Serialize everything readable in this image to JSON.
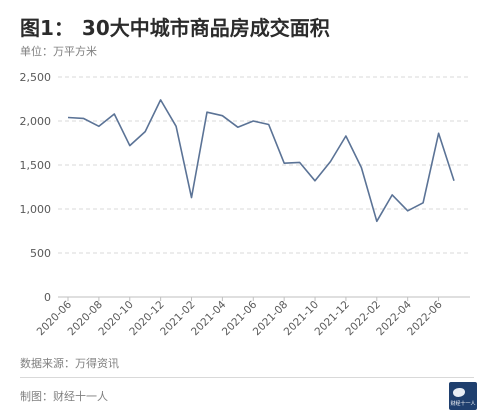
{
  "title": {
    "prefix": "图1：",
    "text": "30大中城市商品房成交面积"
  },
  "unit_label": "单位：万平方米",
  "source": "数据来源：万得资讯",
  "maker": "制图：财经十一人",
  "logo": {
    "icon": "caijing-logo",
    "text": "财经十一人",
    "bg_color": "#1f3f6e"
  },
  "colors": {
    "line": "#5b7396",
    "grid": "#d9d9d9",
    "axis": "#bfbfbf",
    "tick_text": "#595959"
  },
  "chart_data": {
    "type": "line",
    "title": "30大中城市商品房成交面积",
    "ylabel": "",
    "xlabel": "",
    "ylim": [
      0,
      2500
    ],
    "yticks": [
      0,
      500,
      1000,
      1500,
      2000,
      2500
    ],
    "yticklabels": [
      "0",
      "500",
      "1,000",
      "1,500",
      "2,000",
      "2,500"
    ],
    "grid": true,
    "legend": "none",
    "x": [
      "2020-06",
      "2020-07",
      "2020-08",
      "2020-09",
      "2020-10",
      "2020-11",
      "2020-12",
      "2021-01",
      "2021-02",
      "2021-03",
      "2021-04",
      "2021-05",
      "2021-06",
      "2021-07",
      "2021-08",
      "2021-09",
      "2021-10",
      "2021-11",
      "2021-12",
      "2022-01",
      "2022-02",
      "2022-03",
      "2022-04",
      "2022-05",
      "2022-06",
      "2022-07"
    ],
    "xticklabels": [
      "2020-06",
      "2020-08",
      "2020-10",
      "2020-12",
      "2021-02",
      "2021-04",
      "2021-06",
      "2021-08",
      "2021-10",
      "2021-12",
      "2022-02",
      "2022-04",
      "2022-06"
    ],
    "series": [
      {
        "values": [
          2040,
          2030,
          1940,
          2080,
          1720,
          1880,
          2240,
          1940,
          1130,
          2100,
          2060,
          1930,
          2000,
          1960,
          1520,
          1530,
          1320,
          1540,
          1830,
          1470,
          860,
          1160,
          980,
          1070,
          1860,
          1320
        ]
      }
    ]
  }
}
